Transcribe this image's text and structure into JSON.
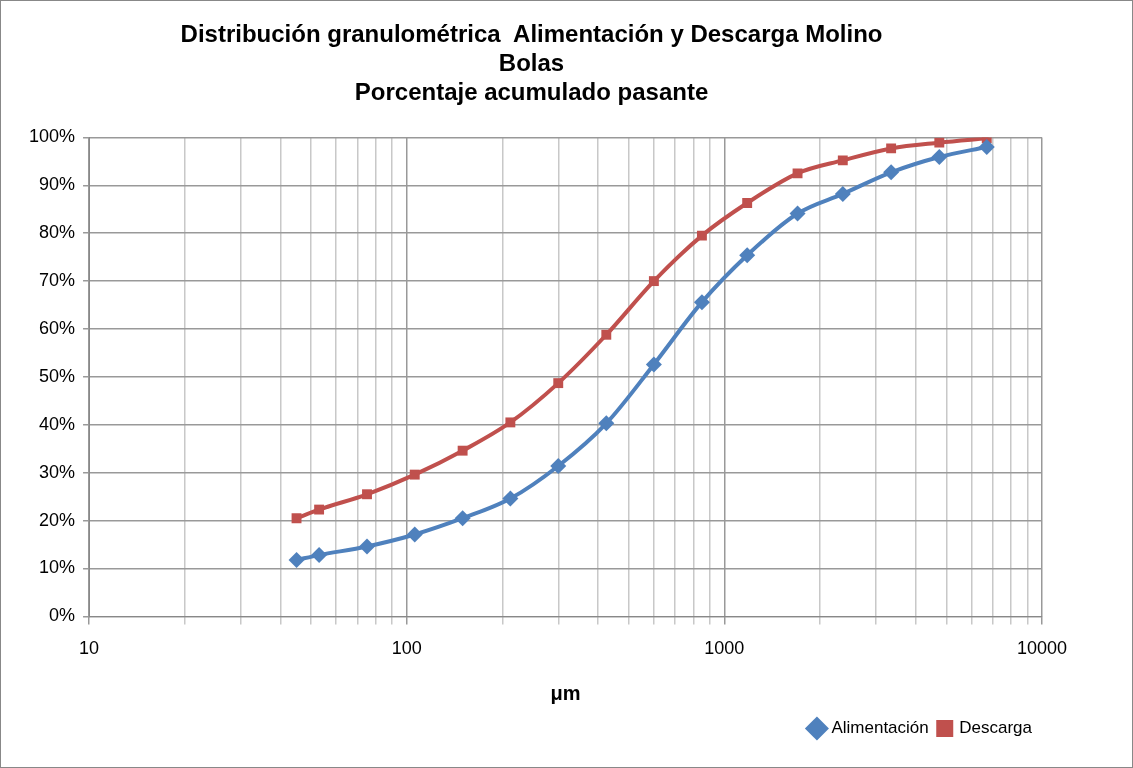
{
  "chart_data": {
    "type": "line",
    "title": [
      "Distribución granulométrica  Alimentación y Descarga Molino",
      "Bolas",
      "Porcentaje acumulado pasante"
    ],
    "xlabel": "μm",
    "x": [
      45,
      53,
      75,
      106,
      150,
      212,
      300,
      425,
      600,
      850,
      1180,
      1700,
      2360,
      3350,
      4750,
      6700
    ],
    "series": [
      {
        "name": "Alimentación",
        "color": "#4f81bd",
        "marker": "diamond",
        "values": [
          11.8,
          12.8,
          14.6,
          17.1,
          20.5,
          24.6,
          31.4,
          40.3,
          52.6,
          65.6,
          75.4,
          84.1,
          88.2,
          92.7,
          95.9,
          98
        ]
      },
      {
        "name": "Descarga",
        "color": "#c0504d",
        "marker": "square",
        "values": [
          20.5,
          22.3,
          25.5,
          29.6,
          34.6,
          40.5,
          48.7,
          58.8,
          70,
          79.5,
          86.3,
          92.5,
          95.2,
          97.7,
          98.9,
          99.8
        ]
      }
    ],
    "log": "x",
    "xlim": [
      10,
      10000
    ],
    "xticks": [
      10,
      {
        "value": 20,
        "label": null
      },
      {
        "value": 30,
        "label": null
      },
      {
        "value": 40,
        "label": null
      },
      {
        "value": 50,
        "label": null
      },
      {
        "value": 60,
        "label": null
      },
      {
        "value": 70,
        "label": null
      },
      {
        "value": 80,
        "label": null
      },
      {
        "value": 90,
        "label": null
      },
      100,
      {
        "value": 200,
        "label": null
      },
      {
        "value": 300,
        "label": null
      },
      {
        "value": 400,
        "label": null
      },
      {
        "value": 500,
        "label": null
      },
      {
        "value": 600,
        "label": null
      },
      {
        "value": 700,
        "label": null
      },
      {
        "value": 800,
        "label": null
      },
      {
        "value": 900,
        "label": null
      },
      1000,
      {
        "value": 2000,
        "label": null
      },
      {
        "value": 3000,
        "label": null
      },
      {
        "value": 4000,
        "label": null
      },
      {
        "value": 5000,
        "label": null
      },
      {
        "value": 6000,
        "label": null
      },
      {
        "value": 7000,
        "label": null
      },
      {
        "value": 8000,
        "label": null
      },
      {
        "value": 9000,
        "label": null
      },
      10000
    ],
    "ylim": [
      0,
      100
    ],
    "yticks": [
      {
        "value": 0,
        "label": "0%"
      },
      {
        "value": 10,
        "label": "10%"
      },
      {
        "value": 20,
        "label": "20%"
      },
      {
        "value": 30,
        "label": "30%"
      },
      {
        "value": 40,
        "label": "40%"
      },
      {
        "value": 50,
        "label": "50%"
      },
      {
        "value": 60,
        "label": "60%"
      },
      {
        "value": 70,
        "label": "70%"
      },
      {
        "value": 80,
        "label": "80%"
      },
      {
        "value": 90,
        "label": "90%"
      },
      {
        "value": 100,
        "label": "100%"
      }
    ],
    "grid": true,
    "legend": "bottom right",
    "line_style": "solid"
  }
}
